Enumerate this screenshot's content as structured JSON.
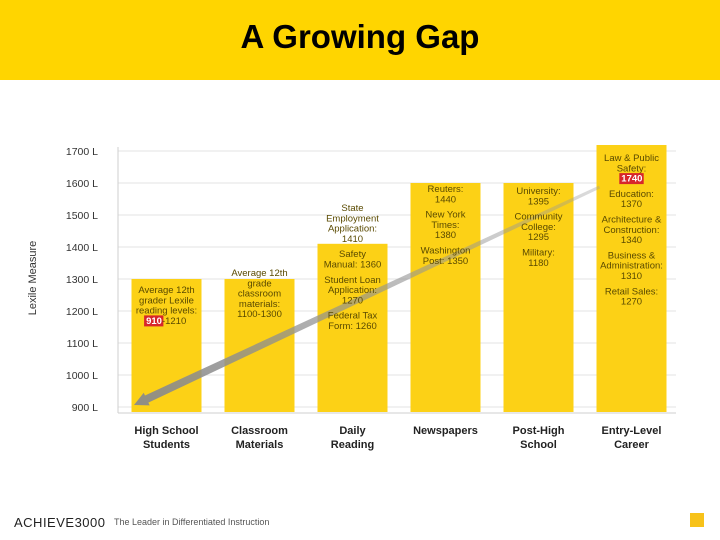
{
  "slide": {
    "title": "A Growing Gap",
    "footer_logo": "ACHIEVE3000",
    "footer_tagline": "The Leader in Differentiated Instruction",
    "accent_color": "#ffd500"
  },
  "chart_data": {
    "type": "bar",
    "title": "",
    "ylabel": "Lexile Measure",
    "xlabel": "",
    "ylim": [
      900,
      1700
    ],
    "yticks": [
      "1700 L",
      "1600 L",
      "1500 L",
      "1400 L",
      "1300 L",
      "1200 L",
      "1100 L",
      "1000 L",
      "900 L"
    ],
    "categories": [
      "High School Students",
      "Classroom Materials",
      "Daily Reading",
      "Newspapers",
      "Post-High School",
      "Entry-Level Career"
    ],
    "values": [
      1300,
      1300,
      1410,
      1600,
      1600,
      1740
    ],
    "bar_color": "#fcd116",
    "highlight_color": "#d7262b",
    "trend_arrow": {
      "from_category": "Entry-Level Career",
      "to_category": "High School Students",
      "from_value": 1550,
      "to_value": 900
    },
    "annotations": [
      {
        "category": "High School Students",
        "lines": [
          "Average 12th",
          "grader Lexile",
          "reading levels:",
          "910-1210"
        ],
        "highlight": "910"
      },
      {
        "category": "Classroom Materials",
        "lines": [
          "Average 12th",
          "grade",
          "classroom",
          "materials:",
          "1100-1300"
        ]
      },
      {
        "category": "Daily Reading",
        "lines": [
          "State",
          "Employment",
          "Application:",
          "1410",
          "",
          "Safety",
          "Manual: 1360",
          "",
          "Student Loan",
          "Application:",
          "1270",
          "",
          "Federal Tax",
          "Form: 1260"
        ]
      },
      {
        "category": "Newspapers",
        "lines": [
          "Reuters:",
          "1440",
          "",
          "New York",
          "Times:",
          "1380",
          "",
          "Washington",
          "Post: 1350"
        ]
      },
      {
        "category": "Post-High School",
        "lines": [
          "University:",
          "1395",
          "",
          "Community",
          "College:",
          "1295",
          "",
          "Military:",
          "1180"
        ]
      },
      {
        "category": "Entry-Level Career",
        "lines": [
          "Law & Public",
          "Safety:",
          "1740",
          "",
          "Education:",
          "1370",
          "",
          "Architecture &",
          "Construction:",
          "1340",
          "",
          "Business &",
          "Administration:",
          "1310",
          "",
          "Retail Sales:",
          "1270"
        ],
        "highlight": "1740"
      }
    ]
  }
}
